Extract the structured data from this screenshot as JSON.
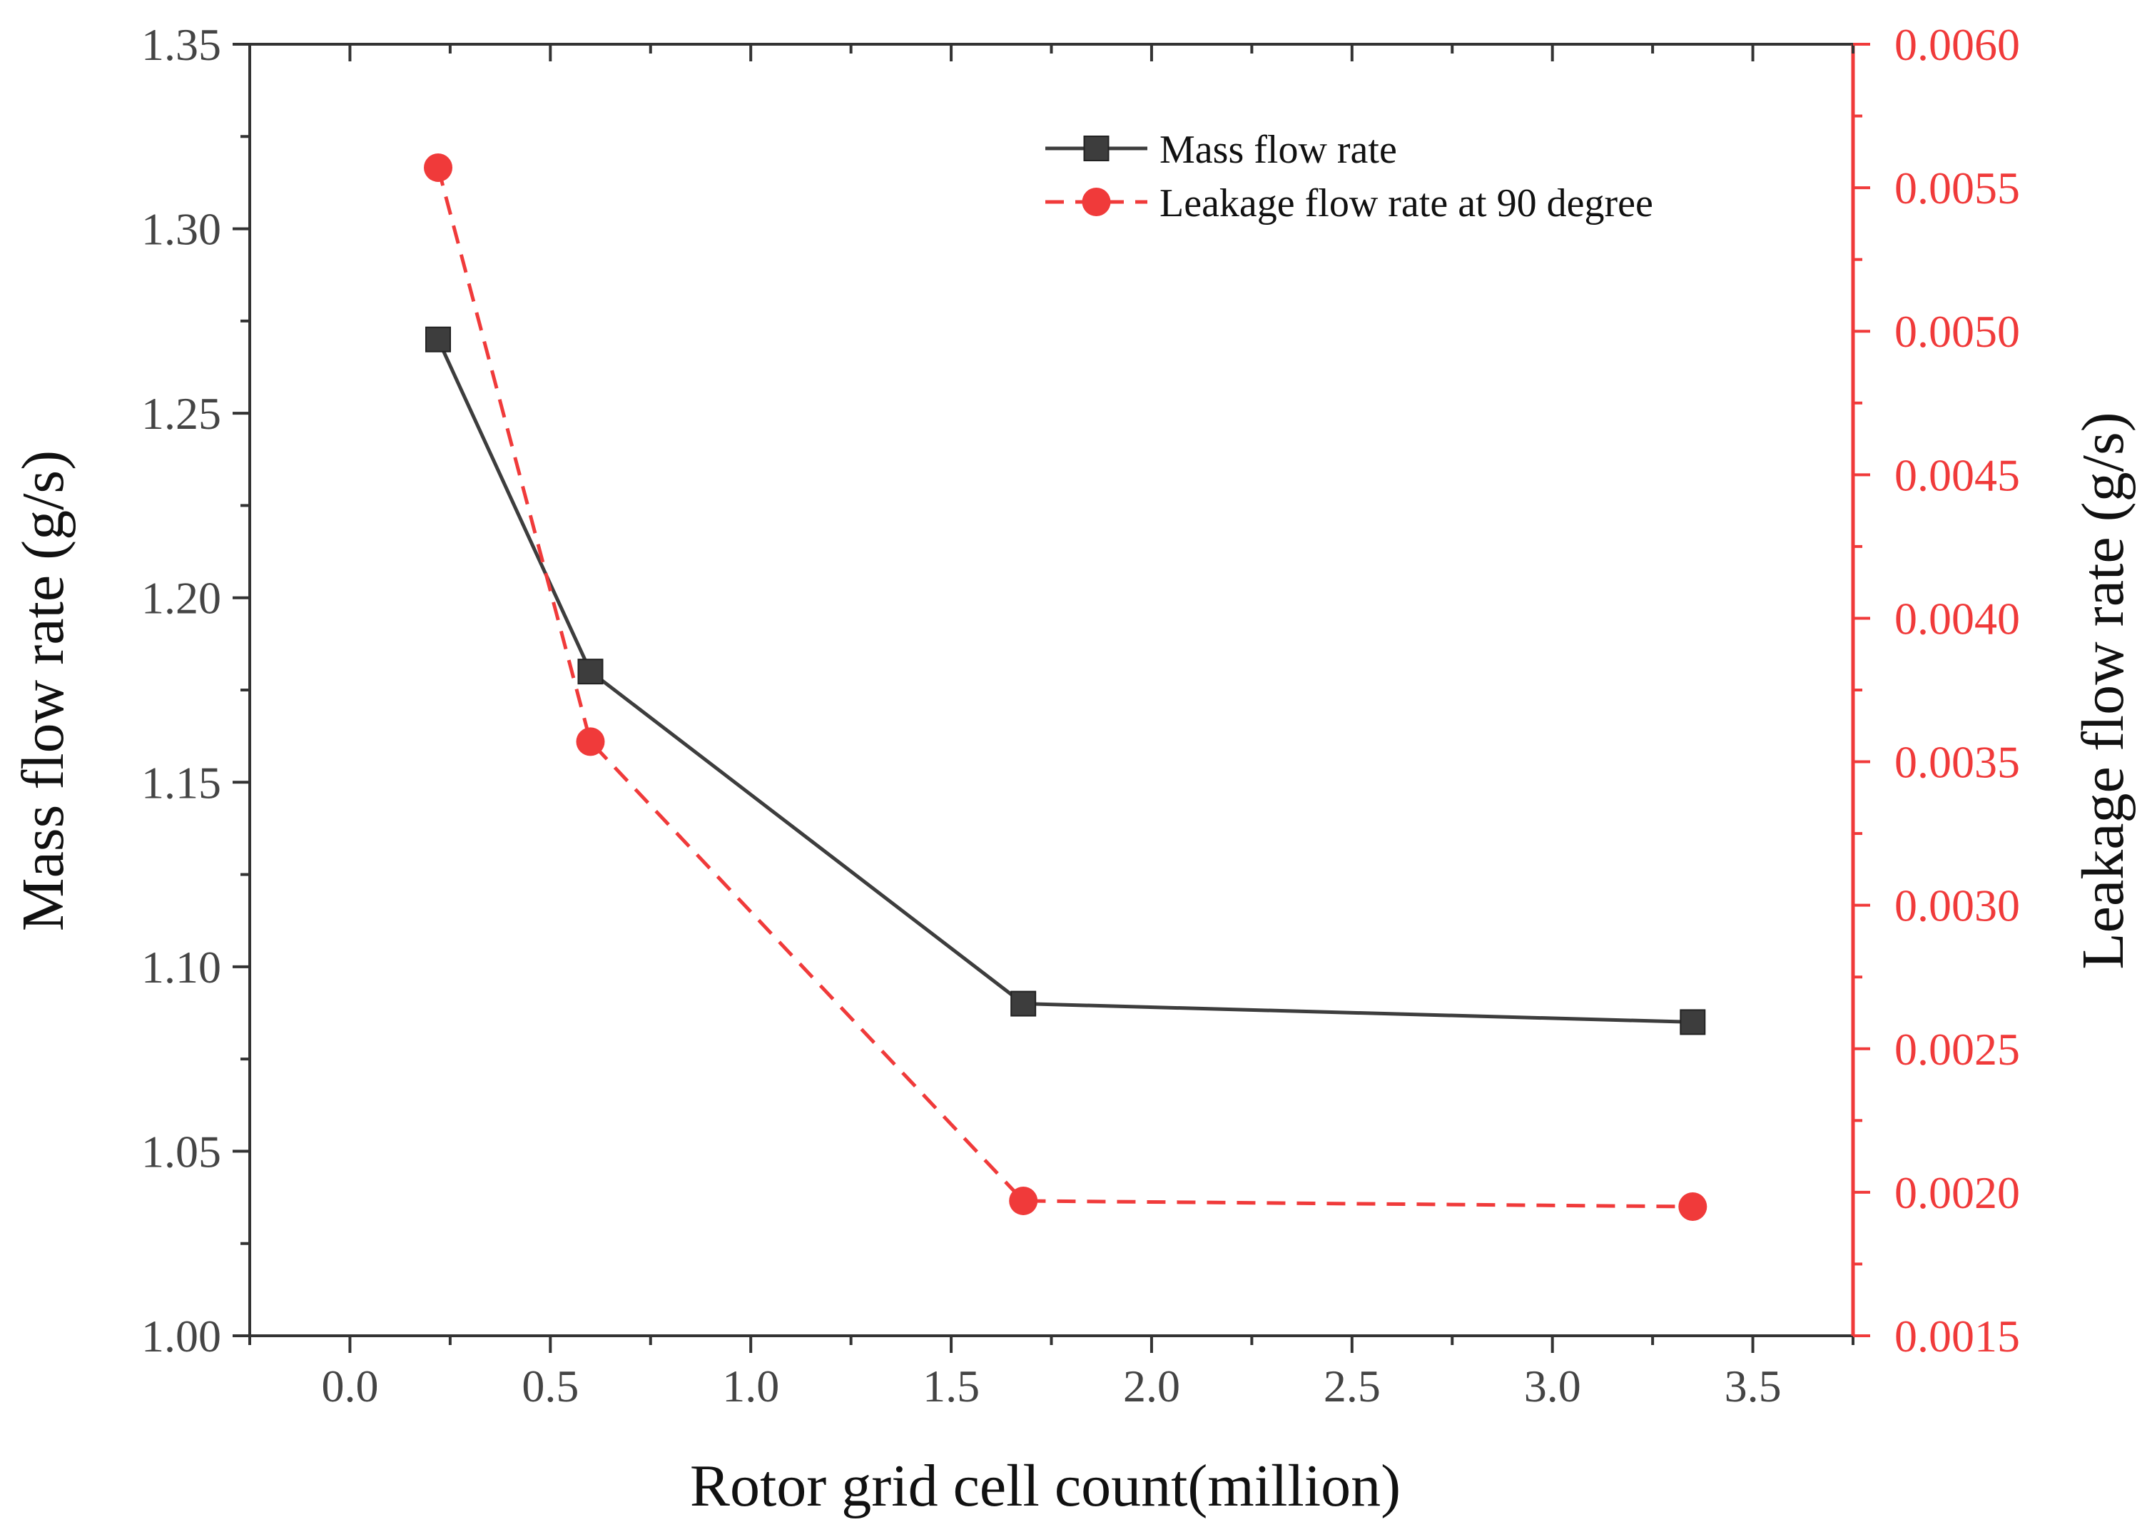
{
  "chart_data": {
    "type": "line",
    "xlabel": "Rotor grid cell count(million)",
    "ylabel_left": "Mass flow rate (g/s)",
    "ylabel_right": "Leakage flow rate (g/s)",
    "xlim": [
      -0.25,
      3.75
    ],
    "x_ticks": [
      "0.0",
      "0.5",
      "1.0",
      "1.5",
      "2.0",
      "2.5",
      "3.0",
      "3.5"
    ],
    "ylim_left": [
      1.0,
      1.35
    ],
    "y_ticks_left": [
      "1.00",
      "1.05",
      "1.10",
      "1.15",
      "1.20",
      "1.25",
      "1.30",
      "1.35"
    ],
    "ylim_right": [
      0.0015,
      0.006
    ],
    "y_ticks_right": [
      "0.0015",
      "0.0020",
      "0.0025",
      "0.0030",
      "0.0035",
      "0.0040",
      "0.0045",
      "0.0050",
      "0.0055",
      "0.0060"
    ],
    "legend_position": "top-right",
    "series": [
      {
        "name": "Mass flow rate",
        "axis": "left",
        "color": "#3d3d3d",
        "line_style": "solid",
        "marker": "square",
        "x": [
          0.22,
          0.6,
          1.68,
          3.35
        ],
        "values": [
          1.27,
          1.18,
          1.09,
          1.085
        ]
      },
      {
        "name": "Leakage flow rate at 90 degree",
        "axis": "right",
        "color": "#f03a3a",
        "line_style": "dashed",
        "marker": "circle",
        "x": [
          0.22,
          0.6,
          1.68,
          3.35
        ],
        "values": [
          0.00557,
          0.00357,
          0.00197,
          0.00195
        ]
      }
    ],
    "colors": {
      "left_axis": "#333333",
      "right_axis": "#f03a3a"
    }
  }
}
